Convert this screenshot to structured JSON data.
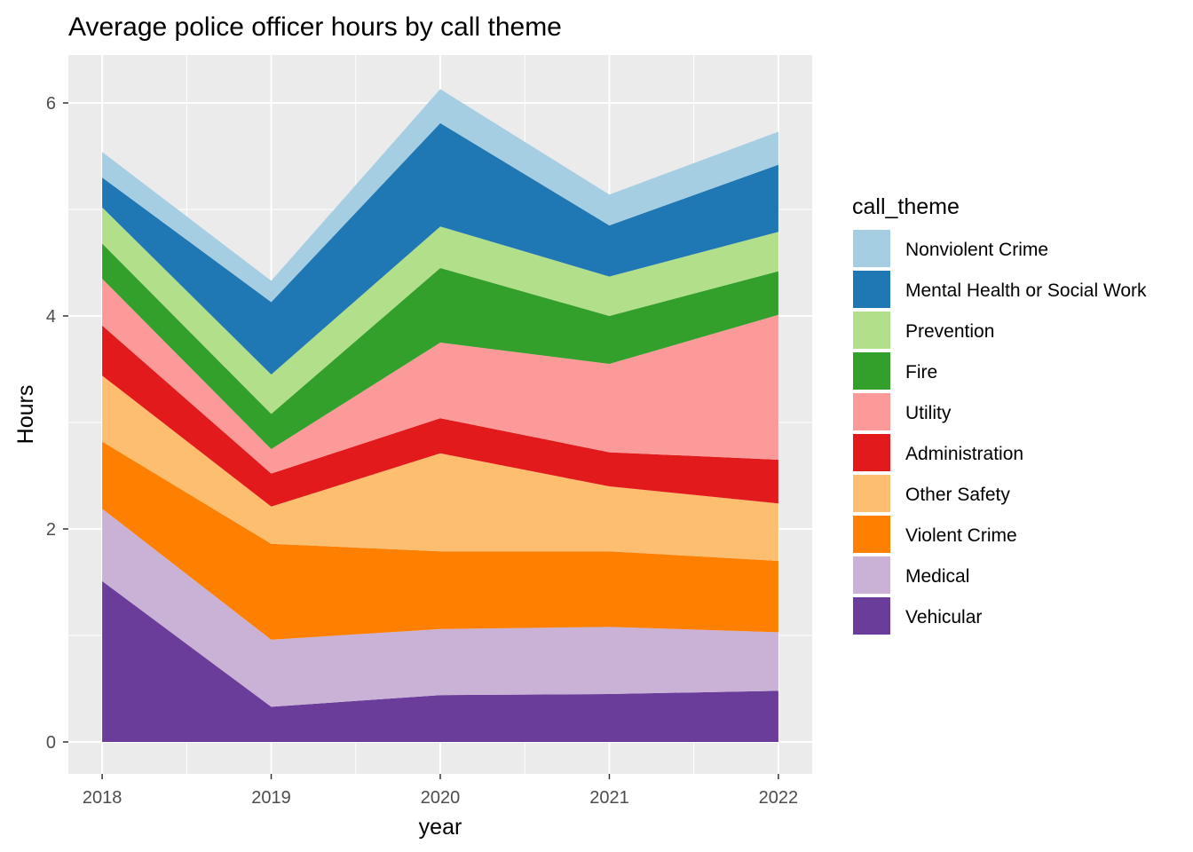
{
  "chart_data": {
    "type": "area",
    "stacked": true,
    "title": "Average police officer hours by call theme",
    "xlabel": "year",
    "ylabel": "Hours",
    "x": [
      2018,
      2019,
      2020,
      2021,
      2022
    ],
    "x_ticks": [
      "2018",
      "2019",
      "2020",
      "2021",
      "2022"
    ],
    "ylim": [
      -0.3,
      6.45
    ],
    "y_ticks": [
      0,
      2,
      4,
      6
    ],
    "y_tick_labels": [
      "0",
      "2",
      "4",
      "6"
    ],
    "grid": true,
    "legend": {
      "title": "call_theme",
      "placement": "right"
    },
    "series": [
      {
        "name": "Vehicular",
        "color": "#6A3D9A",
        "values": [
          1.51,
          0.33,
          0.44,
          0.45,
          0.48
        ]
      },
      {
        "name": "Medical",
        "color": "#CAB2D6",
        "values": [
          0.68,
          0.63,
          0.62,
          0.63,
          0.55
        ]
      },
      {
        "name": "Violent Crime",
        "color": "#FF7F00",
        "values": [
          0.63,
          0.9,
          0.73,
          0.71,
          0.67
        ]
      },
      {
        "name": "Other Safety",
        "color": "#FDBF6F",
        "values": [
          0.62,
          0.35,
          0.92,
          0.61,
          0.54
        ]
      },
      {
        "name": "Administration",
        "color": "#E31A1C",
        "values": [
          0.47,
          0.31,
          0.33,
          0.32,
          0.41
        ]
      },
      {
        "name": "Utility",
        "color": "#FB9A99",
        "values": [
          0.44,
          0.23,
          0.71,
          0.83,
          1.36
        ]
      },
      {
        "name": "Fire",
        "color": "#33A02C",
        "values": [
          0.33,
          0.33,
          0.7,
          0.45,
          0.41
        ]
      },
      {
        "name": "Prevention",
        "color": "#B2DF8A",
        "values": [
          0.34,
          0.37,
          0.39,
          0.37,
          0.37
        ]
      },
      {
        "name": "Mental Health or Social Work",
        "color": "#1F78B4",
        "values": [
          0.28,
          0.68,
          0.97,
          0.48,
          0.63
        ]
      },
      {
        "name": "Nonviolent Crime",
        "color": "#A6CEE3",
        "values": [
          0.24,
          0.2,
          0.32,
          0.29,
          0.31
        ]
      }
    ],
    "legend_order": [
      "Nonviolent Crime",
      "Mental Health or Social Work",
      "Prevention",
      "Fire",
      "Utility",
      "Administration",
      "Other Safety",
      "Violent Crime",
      "Medical",
      "Vehicular"
    ],
    "colors": {
      "panel": "#EBEBEB",
      "grid": "#FFFFFF",
      "tick": "#333333"
    }
  }
}
